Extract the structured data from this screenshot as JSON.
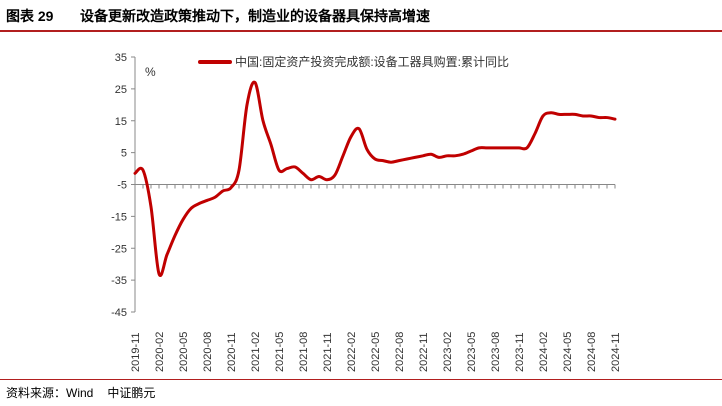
{
  "header": {
    "figure_label": "图表 29",
    "title": "设备更新改造政策推动下，制造业的设备器具保持高增速"
  },
  "footer": {
    "source_label": "资料来源：Wind",
    "source_org": "中证鹏元"
  },
  "colors": {
    "series": "#c00000",
    "rule": "#b21f1f",
    "axis": "#888888"
  },
  "chart_data": {
    "type": "line",
    "unit": "%",
    "ylim": [
      -45,
      35
    ],
    "yticks": [
      35,
      25,
      15,
      5,
      -5,
      -15,
      -25,
      -35,
      -45
    ],
    "x_tick_labels": [
      "2019-11",
      "2020-02",
      "2020-05",
      "2020-08",
      "2020-11",
      "2021-02",
      "2021-05",
      "2021-08",
      "2021-11",
      "2022-02",
      "2022-05",
      "2022-08",
      "2022-11",
      "2023-02",
      "2023-05",
      "2023-08",
      "2023-11",
      "2024-02",
      "2024-05",
      "2024-08",
      "2024-11"
    ],
    "grid": false,
    "legend_position": "top",
    "series": [
      {
        "name": "中国:固定资产投资完成额:设备工器具购置:累计同比",
        "points": [
          [
            "2019-11",
            -1.5
          ],
          [
            "2019-12",
            -0.5
          ],
          [
            "2020-01",
            -12.0
          ],
          [
            "2020-02",
            -33.0
          ],
          [
            "2020-03",
            -27.0
          ],
          [
            "2020-04",
            -21.0
          ],
          [
            "2020-05",
            -16.0
          ],
          [
            "2020-06",
            -12.5
          ],
          [
            "2020-07",
            -11.0
          ],
          [
            "2020-08",
            -10.0
          ],
          [
            "2020-09",
            -9.0
          ],
          [
            "2020-10",
            -7.0
          ],
          [
            "2020-11",
            -6.0
          ],
          [
            "2020-12",
            -0.5
          ],
          [
            "2021-01",
            20.0
          ],
          [
            "2021-02",
            27.0
          ],
          [
            "2021-03",
            15.0
          ],
          [
            "2021-04",
            7.5
          ],
          [
            "2021-05",
            -0.5
          ],
          [
            "2021-06",
            0.0
          ],
          [
            "2021-07",
            0.5
          ],
          [
            "2021-08",
            -1.5
          ],
          [
            "2021-09",
            -3.5
          ],
          [
            "2021-10",
            -2.5
          ],
          [
            "2021-11",
            -3.5
          ],
          [
            "2021-12",
            -2.0
          ],
          [
            "2022-01",
            4.0
          ],
          [
            "2022-02",
            10.0
          ],
          [
            "2022-03",
            12.5
          ],
          [
            "2022-04",
            6.0
          ],
          [
            "2022-05",
            3.0
          ],
          [
            "2022-06",
            2.5
          ],
          [
            "2022-07",
            2.0
          ],
          [
            "2022-08",
            2.5
          ],
          [
            "2022-09",
            3.0
          ],
          [
            "2022-10",
            3.5
          ],
          [
            "2022-11",
            4.0
          ],
          [
            "2022-12",
            4.5
          ],
          [
            "2023-01",
            3.5
          ],
          [
            "2023-02",
            4.0
          ],
          [
            "2023-03",
            4.0
          ],
          [
            "2023-04",
            4.5
          ],
          [
            "2023-05",
            5.5
          ],
          [
            "2023-06",
            6.5
          ],
          [
            "2023-07",
            6.5
          ],
          [
            "2023-08",
            6.5
          ],
          [
            "2023-09",
            6.5
          ],
          [
            "2023-10",
            6.5
          ],
          [
            "2023-11",
            6.5
          ],
          [
            "2023-12",
            6.5
          ],
          [
            "2024-01",
            11.0
          ],
          [
            "2024-02",
            16.5
          ],
          [
            "2024-03",
            17.5
          ],
          [
            "2024-04",
            17.0
          ],
          [
            "2024-05",
            17.0
          ],
          [
            "2024-06",
            17.0
          ],
          [
            "2024-07",
            16.5
          ],
          [
            "2024-08",
            16.5
          ],
          [
            "2024-09",
            16.0
          ],
          [
            "2024-10",
            16.0
          ],
          [
            "2024-11",
            15.5
          ]
        ]
      }
    ]
  }
}
